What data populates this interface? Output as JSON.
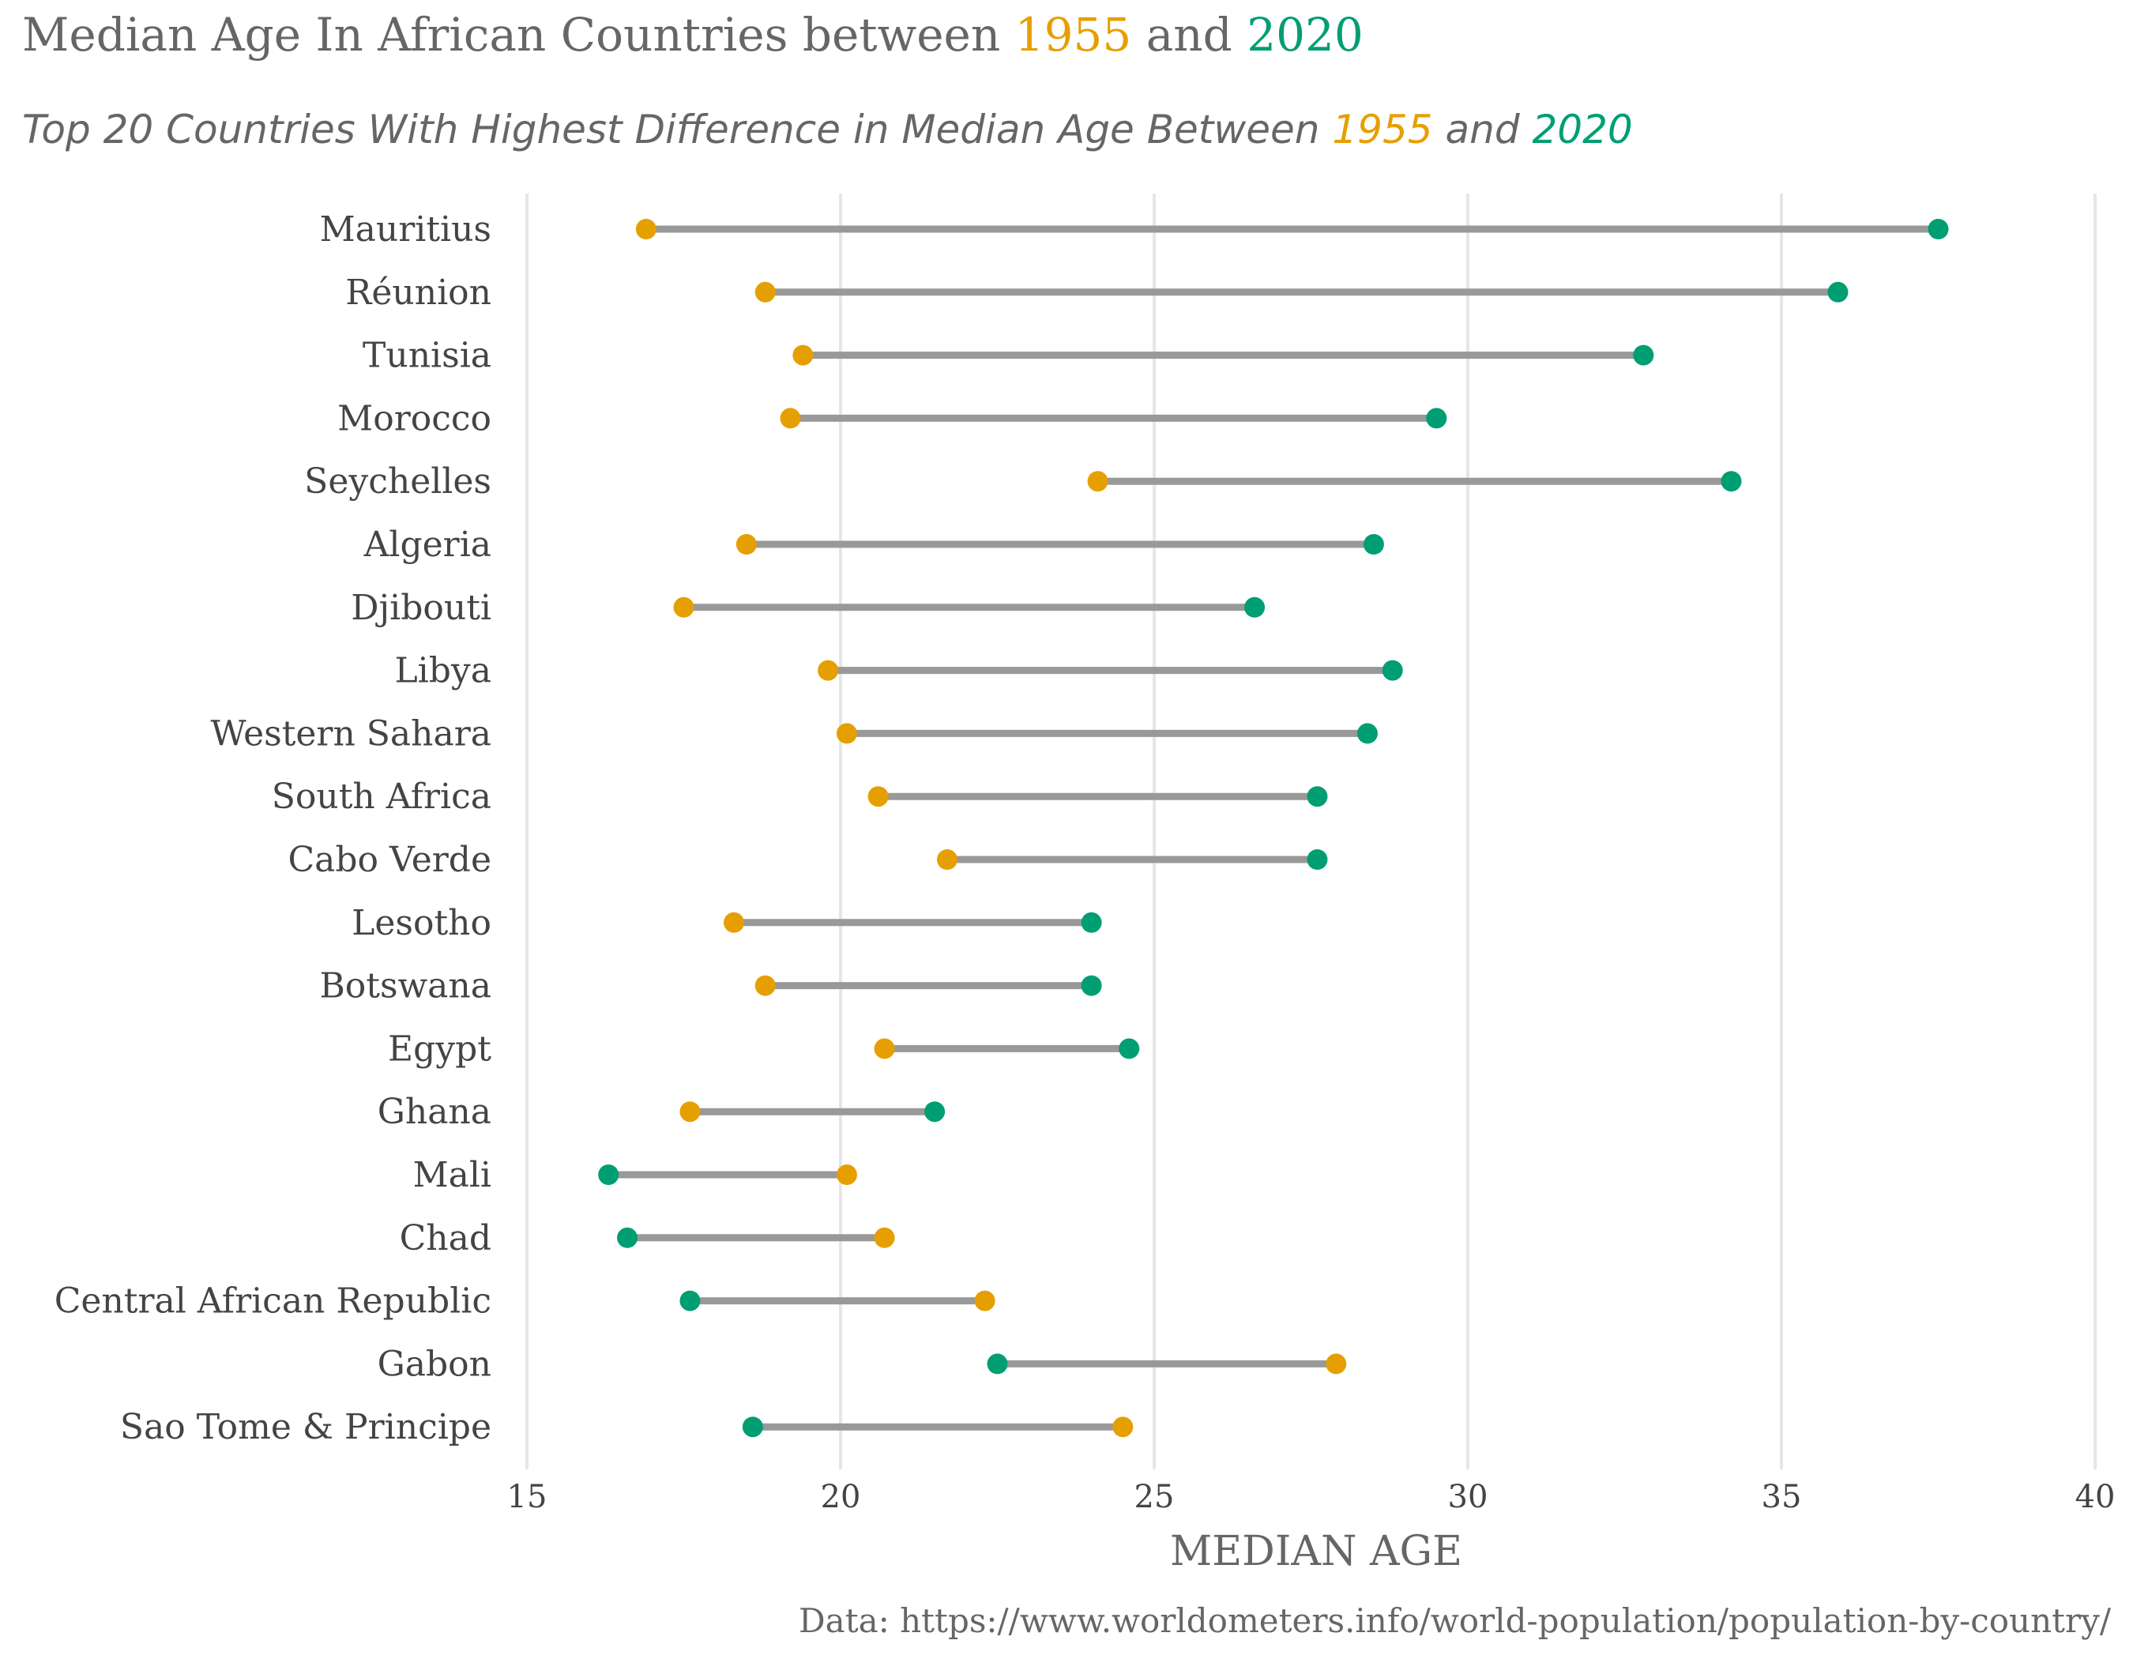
{
  "chart_data": {
    "type": "dumbbell",
    "title": {
      "prefix": "Median Age In African Countries between ",
      "year_start": "1955",
      "middle": " and ",
      "year_end": "2020"
    },
    "subtitle": {
      "prefix": "Top 20 Countries With Highest Difference in Median Age Between ",
      "year_start": "1955",
      "middle": " and ",
      "year_end": "2020"
    },
    "xlabel": "MEDIAN AGE",
    "caption": "Data: https://www.worldometers.info/world-population/population-by-country/",
    "xlim": [
      15,
      40
    ],
    "xticks": [
      15,
      20,
      25,
      30,
      35,
      40
    ],
    "grid": true,
    "colors": {
      "1955": "#E69F00",
      "2020": "#009E73",
      "segment": "#999999",
      "grid": "#e6e6e6"
    },
    "series": [
      {
        "name": "1955",
        "values": [
          16.9,
          18.8,
          19.4,
          19.2,
          24.1,
          18.5,
          17.5,
          19.8,
          20.1,
          20.6,
          21.7,
          18.3,
          18.8,
          20.7,
          17.6,
          20.1,
          20.7,
          22.3,
          27.9,
          24.5
        ]
      },
      {
        "name": "2020",
        "values": [
          37.5,
          35.9,
          32.8,
          29.5,
          34.2,
          28.5,
          26.6,
          28.8,
          28.4,
          27.6,
          27.6,
          24.0,
          24.0,
          24.6,
          21.5,
          16.3,
          16.6,
          17.6,
          22.5,
          18.6
        ]
      }
    ],
    "categories": [
      "Mauritius",
      "Réunion",
      "Tunisia",
      "Morocco",
      "Seychelles",
      "Algeria",
      "Djibouti",
      "Libya",
      "Western Sahara",
      "South Africa",
      "Cabo Verde",
      "Lesotho",
      "Botswana",
      "Egypt",
      "Ghana",
      "Mali",
      "Chad",
      "Central African Republic",
      "Gabon",
      "Sao Tome & Principe"
    ]
  }
}
